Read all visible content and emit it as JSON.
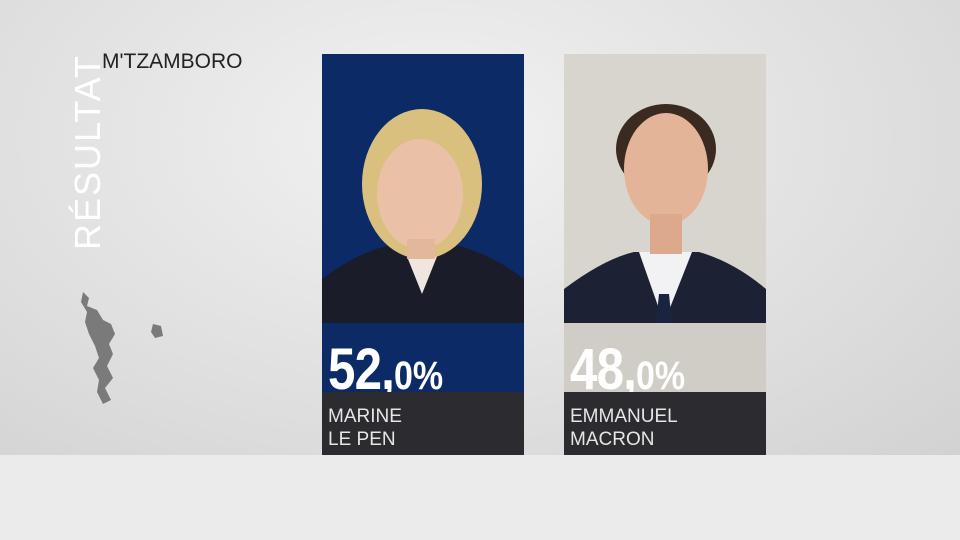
{
  "header": {
    "title": "RÉSULTAT",
    "location": "M'TZAMBORO"
  },
  "candidates": [
    {
      "score_main": "52,",
      "score_decimal": "0%",
      "name_lines": [
        "MARINE",
        "LE PEN"
      ]
    },
    {
      "score_main": "48,",
      "score_decimal": "0%",
      "name_lines": [
        "EMMANUEL",
        "MACRON"
      ]
    }
  ]
}
